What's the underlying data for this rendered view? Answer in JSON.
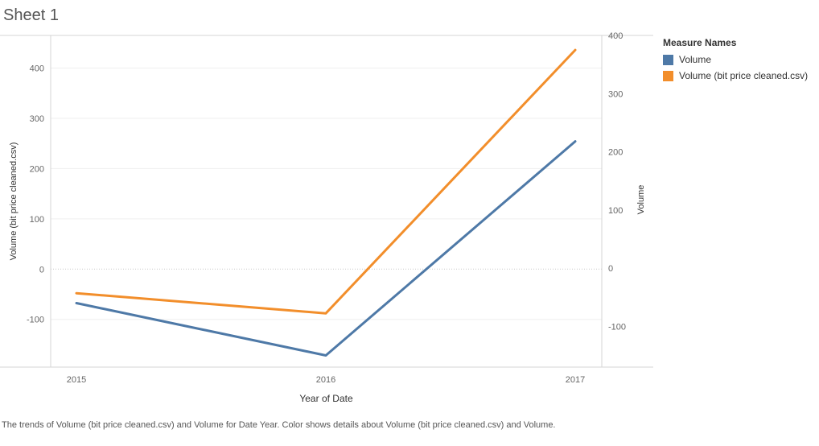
{
  "sheet": {
    "title": "Sheet 1"
  },
  "chart_data": {
    "type": "line",
    "x": [
      2015,
      2016,
      2017
    ],
    "xlabel": "Year of Date",
    "x_tick_labels": [
      "2015",
      "2016",
      "2017"
    ],
    "series": [
      {
        "name": "Volume",
        "axis": "right",
        "color": "#4e79a7",
        "values": [
          -60,
          -150,
          218
        ]
      },
      {
        "name": "Volume (bit price cleaned.csv)",
        "axis": "left",
        "color": "#f28e2b",
        "values": [
          -48,
          -88,
          436
        ]
      }
    ],
    "left_axis": {
      "label": "Volume (bit price cleaned.csv)",
      "range": [
        -195,
        465
      ],
      "ticks": [
        -100,
        0,
        100,
        200,
        300,
        400
      ],
      "tick_labels": [
        "-100",
        "0",
        "100",
        "200",
        "300",
        "400"
      ]
    },
    "right_axis": {
      "label": "Volume",
      "range": [
        -170,
        400
      ],
      "ticks": [
        -100,
        0,
        100,
        200,
        300,
        400
      ],
      "tick_labels": [
        "-100",
        "0",
        "100",
        "200",
        "300",
        "400"
      ]
    },
    "grid": true,
    "legend_position": "right"
  },
  "legend": {
    "title": "Measure Names",
    "items": [
      {
        "label": "Volume",
        "color": "#4e79a7"
      },
      {
        "label": "Volume (bit price cleaned.csv)",
        "color": "#f28e2b"
      }
    ]
  },
  "caption": "The trends of Volume (bit price cleaned.csv) and Volume for Date Year.  Color shows details about Volume (bit price cleaned.csv) and Volume."
}
